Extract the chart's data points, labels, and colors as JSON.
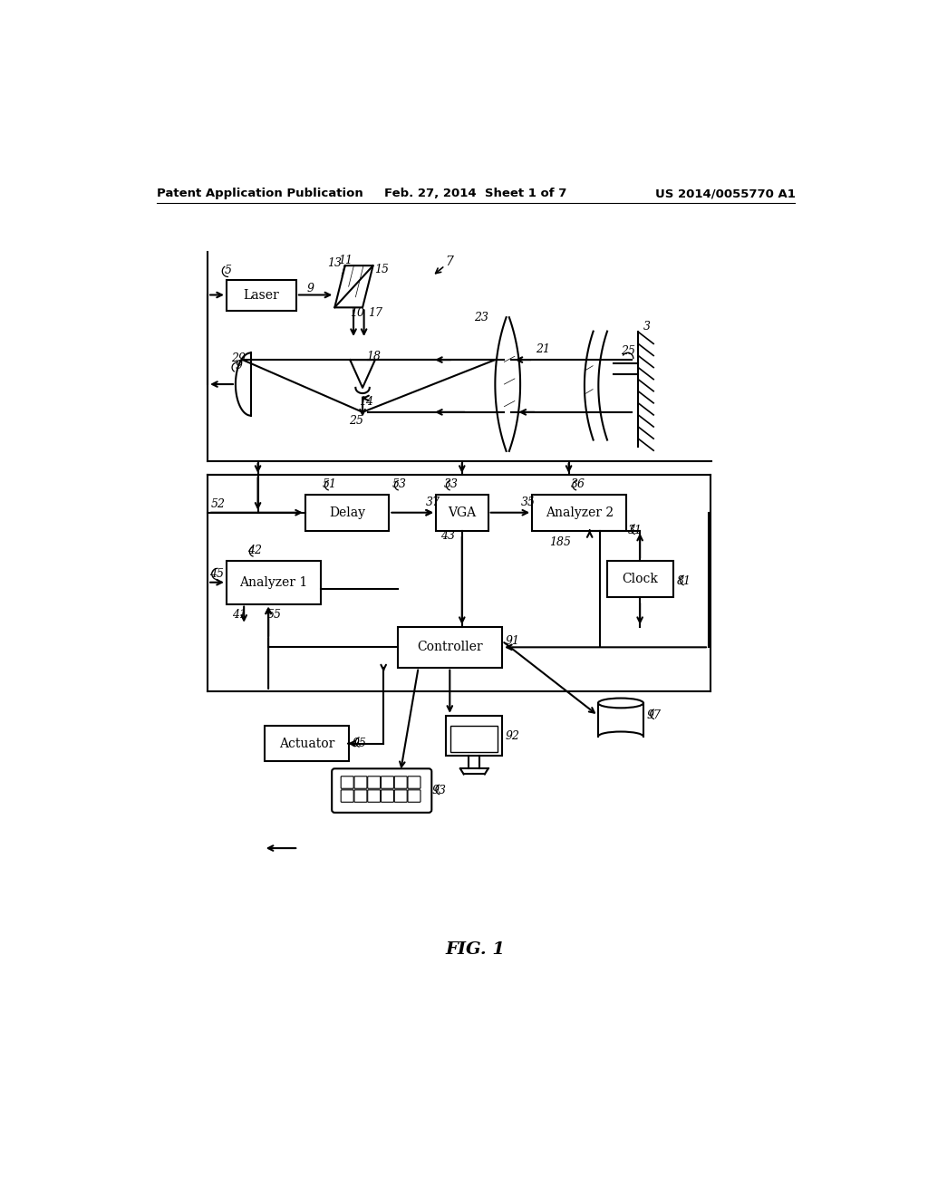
{
  "header_left": "Patent Application Publication",
  "header_mid": "Feb. 27, 2014  Sheet 1 of 7",
  "header_right": "US 2014/0055770 A1",
  "figure_label": "FIG. 1",
  "bg_color": "#ffffff",
  "line_color": "#000000",
  "box_color": "#ffffff",
  "box_edge": "#000000"
}
